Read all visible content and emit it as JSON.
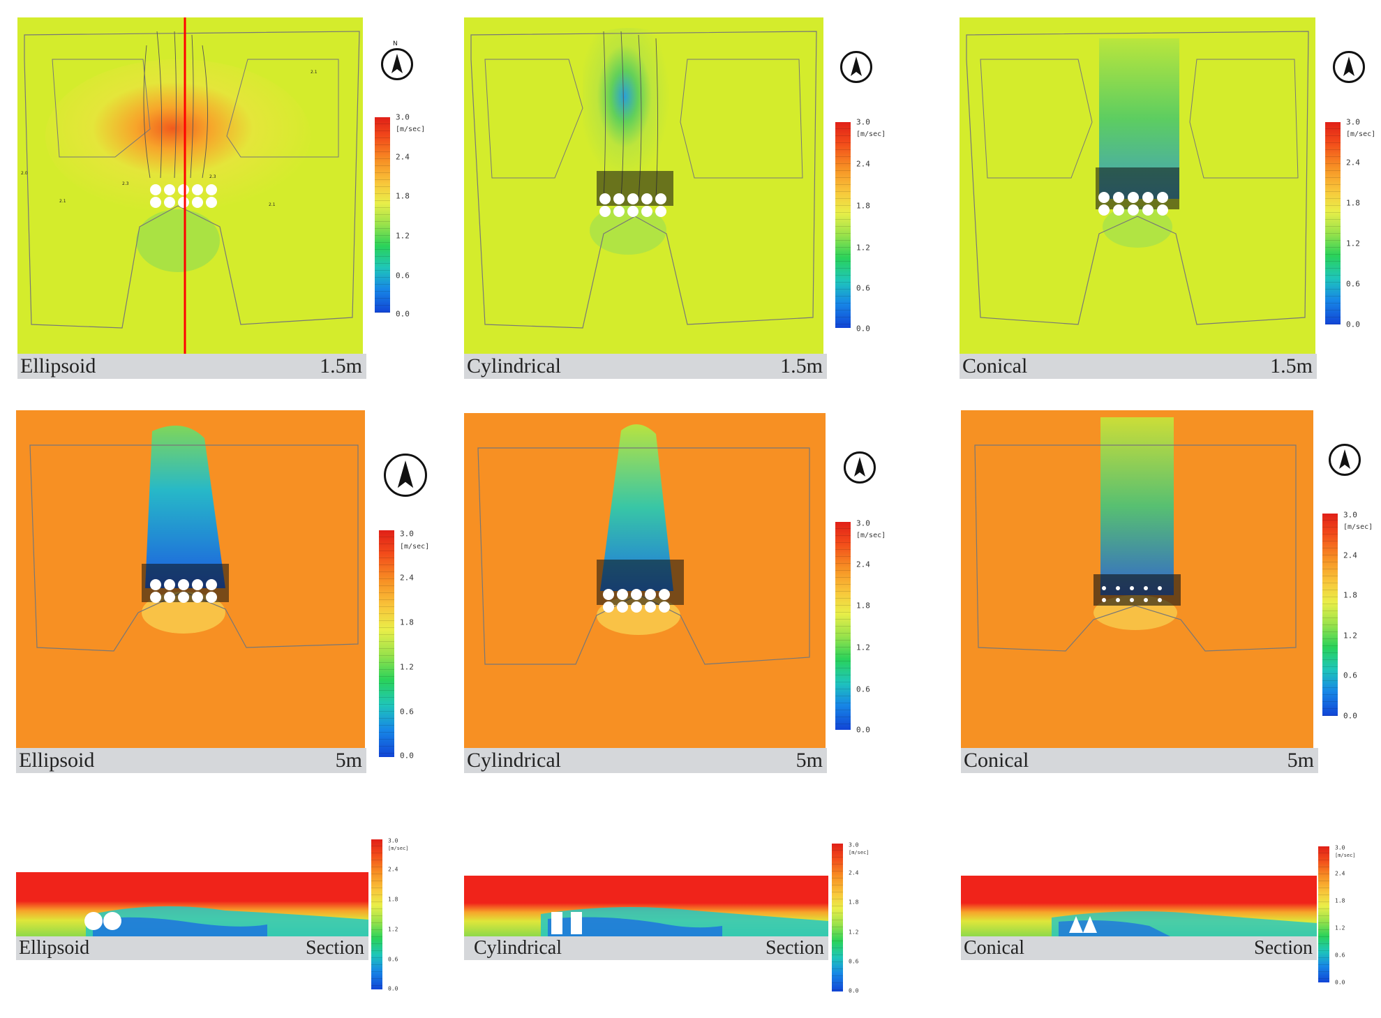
{
  "legend": {
    "max_label": "3.0",
    "unit": "[m/sec]",
    "ticks": [
      "2.4",
      "1.8",
      "1.2",
      "0.6",
      "0.0"
    ]
  },
  "north_letter": "N",
  "panels": [
    {
      "shape": "Ellipsoid",
      "level": "1.5m"
    },
    {
      "shape": "Cylindrical",
      "level": "1.5m"
    },
    {
      "shape": "Conical",
      "level": "1.5m"
    },
    {
      "shape": "Ellipsoid",
      "level": "5m"
    },
    {
      "shape": "Cylindrical",
      "level": "5m"
    },
    {
      "shape": "Conical",
      "level": "5m"
    },
    {
      "shape": "Ellipsoid",
      "level": "Section"
    },
    {
      "shape": "Cylindrical",
      "level": "Section"
    },
    {
      "shape": "Conical",
      "level": "Section"
    }
  ],
  "colors": {
    "plan_1_5m_background": "#d4ec2c",
    "plan_5m_background": "#f79a25",
    "section_top": "#f0231a",
    "wake_blue": "#1c6fe0",
    "wake_cyan": "#26c7c2",
    "section_line": "#ff0000"
  }
}
